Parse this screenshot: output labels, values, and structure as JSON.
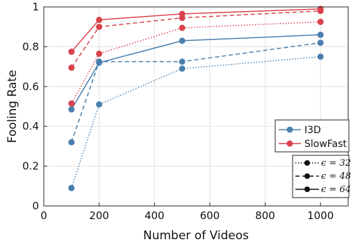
{
  "chart_data": {
    "type": "line",
    "title": "",
    "xlabel": "Number of Videos",
    "ylabel": "Fooling Rate",
    "xlim": [
      0,
      1100
    ],
    "ylim": [
      0,
      1
    ],
    "xticks": [
      0,
      200,
      400,
      600,
      800,
      1000
    ],
    "yticks": [
      0,
      0.2,
      0.4,
      0.6,
      0.8,
      1
    ],
    "xtick_labels": [
      "0",
      "200",
      "400",
      "600",
      "800",
      "1000"
    ],
    "ytick_labels": [
      "0",
      "0.2",
      "0.4",
      "0.6",
      "0.8",
      "1"
    ],
    "grid": true,
    "legend": {
      "placement": "lower-right",
      "models": [
        {
          "name": "I3D",
          "color": "#4a7fad"
        },
        {
          "name": "SlowFast",
          "color": "#d9434b"
        }
      ],
      "styles": [
        {
          "label": "ϵ = 32",
          "dash": "dotted"
        },
        {
          "label": "ϵ = 48",
          "dash": "dashed"
        },
        {
          "label": "ϵ = 64",
          "dash": "solid"
        }
      ]
    },
    "series": [
      {
        "model": "I3D",
        "epsilon": 32,
        "color": "#4a7fad",
        "dash": "dotted",
        "x": [
          100,
          200,
          500,
          1000
        ],
        "y": [
          0.09,
          0.51,
          0.69,
          0.75
        ]
      },
      {
        "model": "I3D",
        "epsilon": 48,
        "color": "#4a7fad",
        "dash": "dashed",
        "x": [
          100,
          200,
          500,
          1000
        ],
        "y": [
          0.32,
          0.725,
          0.725,
          0.82
        ]
      },
      {
        "model": "I3D",
        "epsilon": 64,
        "color": "#4a7fad",
        "dash": "solid",
        "x": [
          100,
          200,
          500,
          1000
        ],
        "y": [
          0.485,
          0.72,
          0.83,
          0.86
        ]
      },
      {
        "model": "SlowFast",
        "epsilon": 32,
        "color": "#d9434b",
        "dash": "dotted",
        "x": [
          100,
          200,
          500,
          1000
        ],
        "y": [
          0.515,
          0.765,
          0.895,
          0.925
        ]
      },
      {
        "model": "SlowFast",
        "epsilon": 48,
        "color": "#d9434b",
        "dash": "dashed",
        "x": [
          100,
          200,
          500,
          1000
        ],
        "y": [
          0.695,
          0.9,
          0.945,
          0.98
        ]
      },
      {
        "model": "SlowFast",
        "epsilon": 64,
        "color": "#d9434b",
        "dash": "solid",
        "x": [
          100,
          200,
          500,
          1000
        ],
        "y": [
          0.775,
          0.935,
          0.965,
          0.99
        ]
      }
    ]
  }
}
